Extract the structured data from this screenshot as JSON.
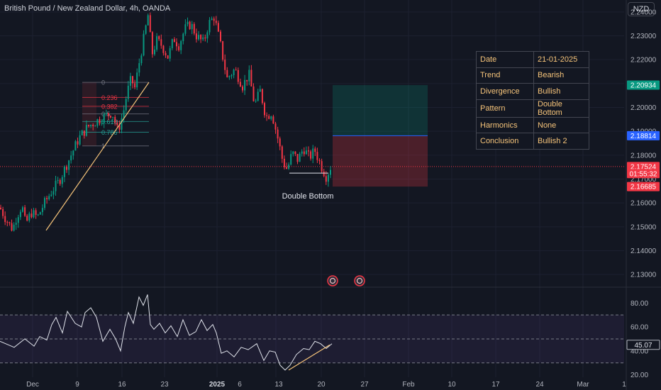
{
  "header": {
    "title": "British Pound / New Zealand Dollar, 4h, OANDA",
    "currency": "NZD"
  },
  "info_table": [
    {
      "key": "Date",
      "value": "21-01-2025"
    },
    {
      "key": "Trend",
      "value": "Bearish"
    },
    {
      "key": "Divergence",
      "value": "Bullish"
    },
    {
      "key": "Pattern",
      "value": "Double Bottom"
    },
    {
      "key": "Harmonics",
      "value": "None"
    },
    {
      "key": "Conclusion",
      "value": "Bullish 2"
    }
  ],
  "colors": {
    "background": "#131722",
    "up": "#089981",
    "down": "#f23645",
    "target": "#2962ff",
    "fib_red": "#f23645",
    "fib_teal": "#26a69a",
    "fib_gray": "#787b86",
    "trendline": "#f6c47a",
    "rsi_line": "#e0e3eb",
    "rsi_band": "#7e57c2",
    "info_text": "#f6c47a"
  },
  "chart_data": [
    {
      "type": "candlestick",
      "title": "British Pound / New Zealand Dollar, 4h, OANDA",
      "ylim": [
        2.125,
        2.245
      ],
      "yticks": [
        2.13,
        2.14,
        2.15,
        2.16,
        2.17,
        2.18,
        2.19,
        2.2,
        2.21,
        2.22,
        2.23,
        2.24
      ],
      "x_tick_labels": [
        "Dec",
        "9",
        "16",
        "23",
        "2025",
        "6",
        "13",
        "20",
        "27",
        "Feb",
        "10",
        "17",
        "24",
        "Mar",
        "1"
      ],
      "price_labels": [
        {
          "value": "2.20934",
          "price": 2.20934,
          "color": "#089981"
        },
        {
          "value": "2.18814",
          "price": 2.18814,
          "color": "#2962ff"
        },
        {
          "value": "2.17524",
          "price": 2.17524,
          "color": "#f23645"
        },
        {
          "value": "01:55:32",
          "price": 2.1723,
          "color": "#f23645"
        },
        {
          "value": "2.16685",
          "price": 2.16685,
          "color": "#f23645"
        }
      ],
      "last_price": 2.17524,
      "fib_levels": [
        {
          "label": "0",
          "price": 2.2105,
          "color": "#787b86"
        },
        {
          "label": "0.236",
          "price": 2.2042,
          "color": "#f23645"
        },
        {
          "label": "0.382",
          "price": 2.2005,
          "color": "#f23645"
        },
        {
          "label": "0.5",
          "price": 2.1973,
          "color": "#787b86"
        },
        {
          "label": "0.618",
          "price": 2.1941,
          "color": "#26a69a"
        },
        {
          "label": "0.786",
          "price": 2.1896,
          "color": "#26a69a"
        },
        {
          "label": "1",
          "price": 2.1839,
          "color": "#787b86"
        }
      ],
      "position_box": {
        "entry": 2.18814,
        "target": 2.20934,
        "stop": 2.16685
      },
      "annotations": [
        "Double Bottom"
      ],
      "series": [
        {
          "name": "",
          "keypoints_x": [
            0,
            7,
            13,
            18,
            23,
            31,
            36,
            44,
            53,
            61,
            73,
            83,
            97,
            111,
            124,
            140,
            158,
            166,
            174,
            179,
            185,
            190,
            197,
            204,
            209,
            214,
            221,
            228,
            237,
            245,
            252,
            261,
            269,
            277,
            287,
            294,
            302,
            311,
            320,
            331,
            342,
            351,
            359,
            367,
            375,
            383,
            391,
            399,
            405,
            412,
            420,
            428,
            436,
            444,
            452,
            460,
            466
          ],
          "keypoints_price": [
            2.158,
            2.154,
            2.151,
            2.149,
            2.154,
            2.159,
            2.151,
            2.156,
            2.154,
            2.159,
            2.165,
            2.169,
            2.178,
            2.187,
            2.192,
            2.195,
            2.198,
            2.19,
            2.198,
            2.206,
            2.212,
            2.208,
            2.22,
            2.231,
            2.239,
            2.222,
            2.228,
            2.226,
            2.221,
            2.229,
            2.226,
            2.233,
            2.235,
            2.23,
            2.227,
            2.235,
            2.238,
            2.226,
            2.212,
            2.216,
            2.209,
            2.214,
            2.201,
            2.207,
            2.196,
            2.198,
            2.188,
            2.177,
            2.174,
            2.181,
            2.178,
            2.183,
            2.179,
            2.182,
            2.176,
            2.171,
            2.175
          ]
        }
      ]
    },
    {
      "type": "line",
      "title": "",
      "ylim": [
        18,
        92
      ],
      "yticks": [
        20,
        40,
        60,
        80
      ],
      "tick_labels": [
        "20.00",
        "40.00",
        "60.00",
        "80.00"
      ],
      "band": [
        30,
        70
      ],
      "midline": 50,
      "last_value_label": "45.07",
      "series": [
        {
          "name": "",
          "x": [
            0,
            12,
            20,
            35,
            48,
            56,
            66,
            73,
            79,
            88,
            95,
            106,
            115,
            120,
            128,
            136,
            145,
            155,
            163,
            170,
            176,
            181,
            188,
            196,
            202,
            208,
            212,
            217,
            225,
            233,
            241,
            250,
            258,
            267,
            276,
            284,
            292,
            300,
            305,
            312,
            320,
            330,
            340,
            350,
            362,
            372,
            380,
            388,
            395,
            402,
            409,
            418,
            428,
            436,
            444,
            452,
            460,
            468
          ],
          "y": [
            48,
            45,
            43,
            50,
            44,
            52,
            49,
            62,
            68,
            55,
            73,
            63,
            60,
            72,
            76,
            68,
            48,
            58,
            50,
            40,
            60,
            72,
            63,
            85,
            78,
            87,
            62,
            58,
            63,
            55,
            61,
            52,
            66,
            53,
            56,
            66,
            57,
            62,
            55,
            38,
            40,
            35,
            43,
            41,
            46,
            32,
            40,
            39,
            28,
            24,
            28,
            37,
            42,
            41,
            48,
            46,
            42,
            46
          ]
        }
      ]
    }
  ]
}
